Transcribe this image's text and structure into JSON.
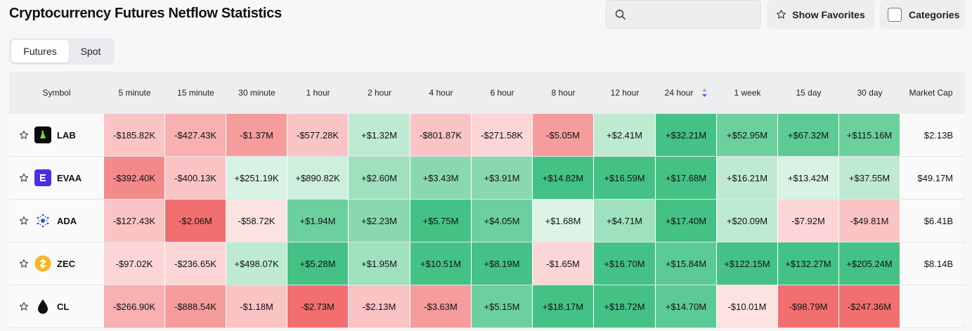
{
  "page": {
    "title": "Cryptocurrency Futures Netflow Statistics"
  },
  "search": {
    "placeholder": ""
  },
  "buttons": {
    "favorites": "Show Favorites",
    "categories": "Categories"
  },
  "tabs": [
    {
      "label": "Futures",
      "active": true
    },
    {
      "label": "Spot",
      "active": false
    }
  ],
  "columns": [
    "Symbol",
    "5 minute",
    "15 minute",
    "30 minute",
    "1 hour",
    "2 hour",
    "4 hour",
    "6 hour",
    "8 hour",
    "12 hour",
    "24 hour",
    "1 week",
    "15 day",
    "30 day",
    "Market Cap"
  ],
  "sorted_column": "24 hour",
  "rows": [
    {
      "symbol": "LAB",
      "icon": "lab-coin-icon",
      "values": [
        "-$185.82K",
        "-$427.43K",
        "-$1.37M",
        "-$577.28K",
        "+$1.32M",
        "-$801.87K",
        "-$271.58K",
        "-$5.05M",
        "+$2.41M",
        "+$32.21M",
        "+$52.95M",
        "+$67.32M",
        "+$115.16M"
      ],
      "colors": [
        "#fbc4c4",
        "#f8b0b0",
        "#f59c9c",
        "#fbc4c4",
        "#bfead2",
        "#fbc4c4",
        "#fcd6d6",
        "#f59c9c",
        "#bfead2",
        "#44c285",
        "#6bd09e",
        "#5cca94",
        "#6bd09e"
      ],
      "market_cap": "$2.13B"
    },
    {
      "symbol": "EVAA",
      "icon": "evaa-coin-icon",
      "values": [
        "-$392.40K",
        "-$400.13K",
        "+$251.19K",
        "+$890.82K",
        "+$2.60M",
        "+$3.43M",
        "+$3.91M",
        "+$14.82M",
        "+$16.59M",
        "+$17.68M",
        "+$16.21M",
        "+$13.42M",
        "+$37.55M"
      ],
      "colors": [
        "#f38a8a",
        "#fbc4c4",
        "#d8f2e3",
        "#cdefdc",
        "#9fe0bd",
        "#8ad8b0",
        "#8ad8b0",
        "#44c285",
        "#44c285",
        "#44c285",
        "#bfead2",
        "#d8f2e3",
        "#bfead2"
      ],
      "market_cap": "$49.17M"
    },
    {
      "symbol": "ADA",
      "icon": "ada-coin-icon",
      "values": [
        "-$127.43K",
        "-$2.06M",
        "-$58.72K",
        "+$1.94M",
        "+$2.23M",
        "+$5.75M",
        "+$4.05M",
        "+$1.68M",
        "+$4.71M",
        "+$17.40M",
        "+$20.09M",
        "-$7.92M",
        "-$49.81M"
      ],
      "colors": [
        "#fbc4c4",
        "#f26f6f",
        "#fde2e2",
        "#6bd09e",
        "#8ad8b0",
        "#44c285",
        "#6bd09e",
        "#dcf3e6",
        "#9fe0bd",
        "#44c285",
        "#bfead2",
        "#fcd6d6",
        "#fbc4c4"
      ],
      "market_cap": "$6.41B"
    },
    {
      "symbol": "ZEC",
      "icon": "zec-coin-icon",
      "values": [
        "-$97.02K",
        "-$236.65K",
        "+$498.07K",
        "+$5.28M",
        "+$1.95M",
        "+$10.51M",
        "+$8.19M",
        "-$1.65M",
        "+$16.70M",
        "+$15.84M",
        "+$122.15M",
        "+$132.27M",
        "+$205.24M"
      ],
      "colors": [
        "#fcd6d6",
        "#fcd6d6",
        "#bfead2",
        "#44c285",
        "#9fe0bd",
        "#44c285",
        "#44c285",
        "#fcd6d6",
        "#44c285",
        "#5cca94",
        "#44c285",
        "#44c285",
        "#44c285"
      ],
      "market_cap": "$8.14B"
    },
    {
      "symbol": "CL",
      "icon": "cl-oil-drop-icon",
      "values": [
        "-$266.90K",
        "-$888.54K",
        "-$1.18M",
        "-$2.73M",
        "-$2.13M",
        "-$3.63M",
        "+$5.15M",
        "+$18.17M",
        "+$18.72M",
        "+$14.70M",
        "-$10.01M",
        "-$98.79M",
        "-$247.36M"
      ],
      "colors": [
        "#f8b0b0",
        "#f59c9c",
        "#fbc4c4",
        "#f26f6f",
        "#fbc4c4",
        "#f59c9c",
        "#6bd09e",
        "#44c285",
        "#44c285",
        "#5cca94",
        "#fde2e2",
        "#f26f6f",
        "#f26f6f"
      ],
      "market_cap": ""
    }
  ]
}
